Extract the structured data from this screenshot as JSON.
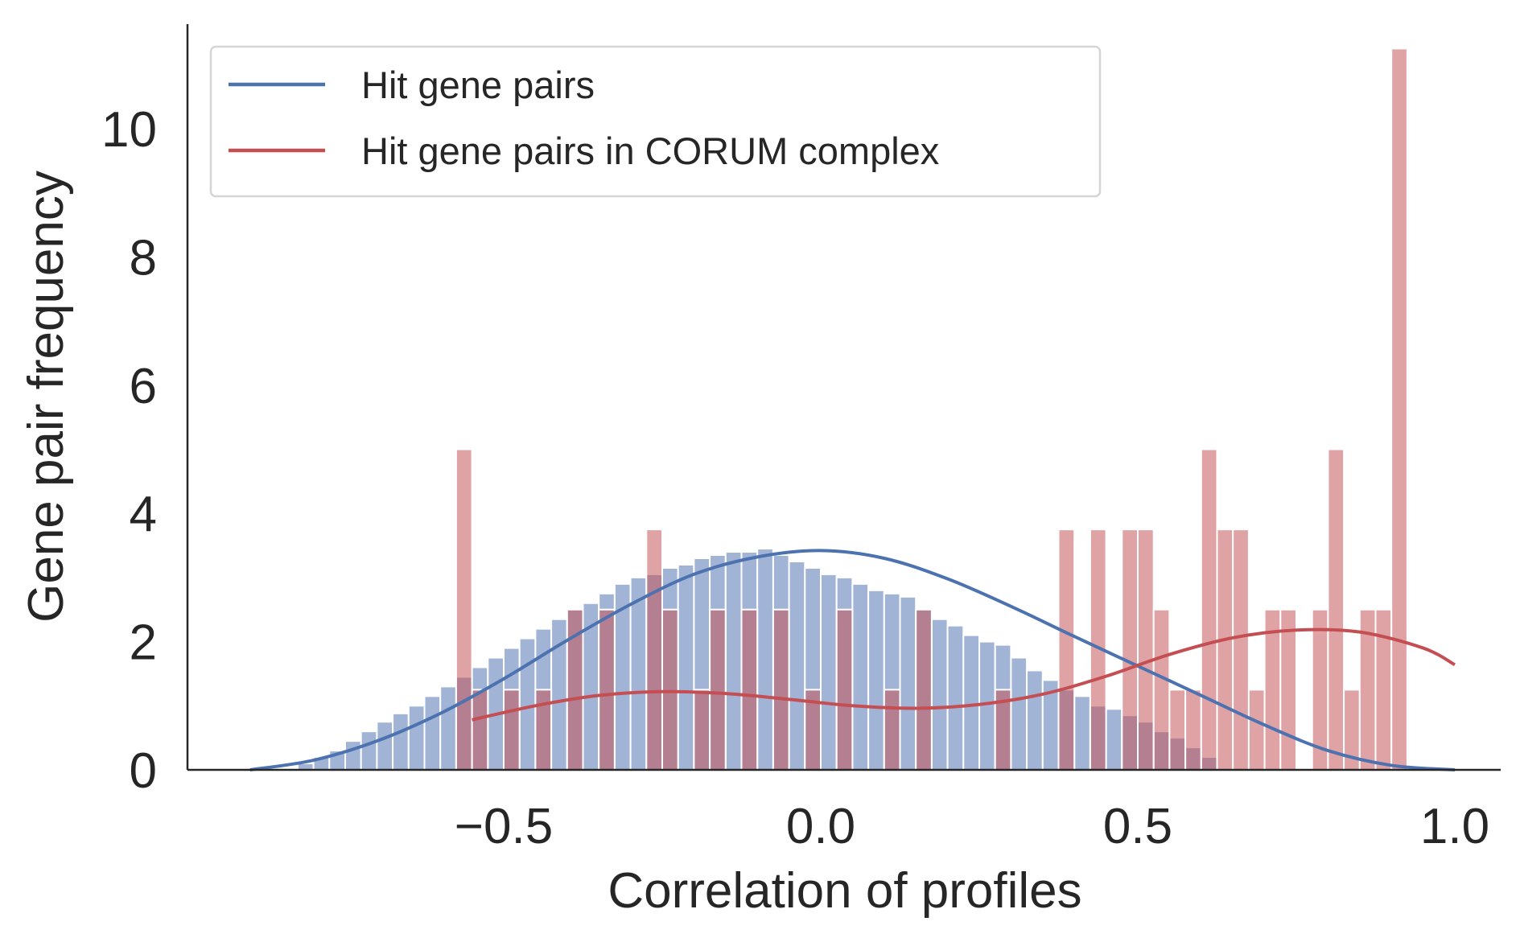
{
  "chart_data": {
    "type": "bar",
    "xlabel": "Correlation of profiles",
    "ylabel": "Gene pair frequency",
    "xlim": [
      -0.9,
      1.1
    ],
    "ylim": [
      0,
      11.7
    ],
    "xticks": [
      -0.5,
      0.0,
      0.5,
      1.0
    ],
    "xtick_labels": [
      "−0.5",
      "0.0",
      "0.5",
      "1.0"
    ],
    "yticks": [
      0,
      2,
      4,
      6,
      8,
      10
    ],
    "ytick_labels": [
      "0",
      "2",
      "4",
      "6",
      "8",
      "10"
    ],
    "grid": false,
    "legend_position": "top-left",
    "bin_width": 0.025,
    "series": [
      {
        "name": "Hit gene pairs",
        "color": "#4c72b0",
        "bar_fill": "#a1b4d6",
        "bin_start": -0.825,
        "values": [
          0.1,
          0.2,
          0.3,
          0.45,
          0.6,
          0.75,
          0.88,
          1.0,
          1.15,
          1.3,
          1.45,
          1.6,
          1.75,
          1.9,
          2.05,
          2.2,
          2.35,
          2.5,
          2.6,
          2.75,
          2.9,
          3.0,
          3.05,
          3.15,
          3.2,
          3.3,
          3.35,
          3.4,
          3.4,
          3.45,
          3.35,
          3.25,
          3.15,
          3.05,
          3.0,
          2.9,
          2.8,
          2.75,
          2.7,
          2.5,
          2.35,
          2.25,
          2.1,
          2.0,
          1.95,
          1.75,
          1.55,
          1.4,
          1.25,
          1.15,
          1.0,
          0.95,
          0.85,
          0.75,
          0.6,
          0.5,
          0.35,
          0.2
        ],
        "kde": {
          "x": [
            -0.9,
            -0.8,
            -0.7,
            -0.6,
            -0.5,
            -0.4,
            -0.3,
            -0.2,
            -0.1,
            0.0,
            0.1,
            0.2,
            0.3,
            0.4,
            0.5,
            0.6,
            0.7,
            0.8,
            0.9,
            1.0
          ],
          "y": [
            0.0,
            0.15,
            0.45,
            0.88,
            1.42,
            2.02,
            2.58,
            3.05,
            3.32,
            3.42,
            3.3,
            2.98,
            2.55,
            2.08,
            1.62,
            1.16,
            0.7,
            0.3,
            0.07,
            0.0
          ]
        }
      },
      {
        "name": "Hit gene pairs in CORUM complex",
        "color": "#c44e52",
        "bar_fill": "rgba(196, 78, 82, 0.52)",
        "bin_start": -0.575,
        "values": [
          5,
          1.25,
          0,
          1.25,
          0,
          1.25,
          0,
          2.5,
          0,
          2.5,
          0,
          0,
          3.75,
          2.5,
          0,
          1.25,
          2.5,
          0,
          2.5,
          0,
          2.5,
          0,
          1.25,
          0,
          2.5,
          0,
          0,
          1.25,
          0,
          2.5,
          0,
          0,
          0,
          0,
          1.25,
          0,
          0,
          0,
          3.75,
          0,
          3.75,
          0,
          3.75,
          3.75,
          2.5,
          1.25,
          1.25,
          5,
          3.75,
          3.75,
          1.25,
          2.5,
          2.5,
          0,
          2.5,
          5,
          1.25,
          2.5,
          2.5,
          11.25
        ],
        "kde": {
          "x": [
            -0.55,
            -0.45,
            -0.35,
            -0.25,
            -0.15,
            -0.05,
            0.05,
            0.15,
            0.25,
            0.35,
            0.45,
            0.55,
            0.65,
            0.75,
            0.85,
            0.95,
            1.0
          ],
          "y": [
            0.78,
            1.0,
            1.16,
            1.22,
            1.19,
            1.1,
            1.0,
            0.96,
            1.02,
            1.18,
            1.46,
            1.8,
            2.06,
            2.18,
            2.15,
            1.9,
            1.64
          ]
        }
      }
    ]
  }
}
